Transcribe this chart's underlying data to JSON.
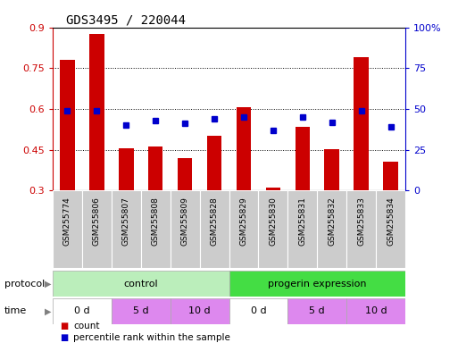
{
  "title": "GDS3495 / 220044",
  "samples": [
    "GSM255774",
    "GSM255806",
    "GSM255807",
    "GSM255808",
    "GSM255809",
    "GSM255828",
    "GSM255829",
    "GSM255830",
    "GSM255831",
    "GSM255832",
    "GSM255833",
    "GSM255834"
  ],
  "count_values": [
    0.78,
    0.875,
    0.455,
    0.462,
    0.42,
    0.5,
    0.605,
    0.31,
    0.535,
    0.452,
    0.79,
    0.405
  ],
  "percentile_values": [
    49,
    49,
    40,
    43,
    41,
    44,
    45,
    37,
    45,
    42,
    49,
    39
  ],
  "ylim_left": [
    0.3,
    0.9
  ],
  "ylim_right": [
    0,
    100
  ],
  "yticks_left": [
    0.3,
    0.45,
    0.6,
    0.75,
    0.9
  ],
  "yticks_right": [
    0,
    25,
    50,
    75,
    100
  ],
  "ytick_labels_left": [
    "0.3",
    "0.45",
    "0.6",
    "0.75",
    "0.9"
  ],
  "ytick_labels_right": [
    "0",
    "25",
    "50",
    "75",
    "100%"
  ],
  "bar_color": "#cc0000",
  "dot_color": "#0000cc",
  "bar_width": 0.5,
  "control_color": "#bbeebb",
  "progerin_color": "#44dd44",
  "time_white": "#ffffff",
  "time_pink": "#dd88ee",
  "legend_count_label": "count",
  "legend_pct_label": "percentile rank within the sample",
  "protocol_label": "protocol",
  "time_label": "time",
  "background_color": "#ffffff",
  "tick_area_color": "#cccccc",
  "gray_border": "#aaaaaa"
}
